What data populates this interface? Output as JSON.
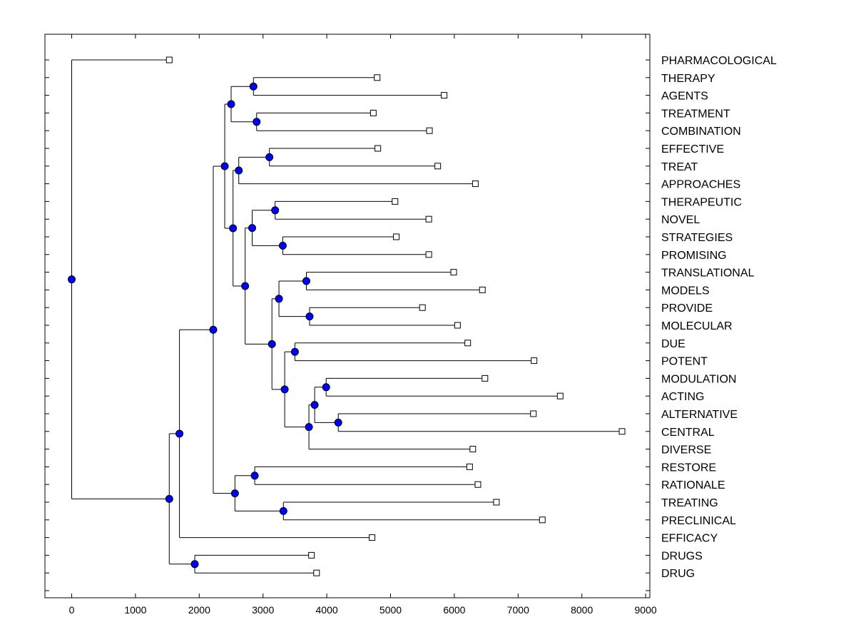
{
  "chart_data": {
    "type": "dendrogram",
    "title": "",
    "xlabel": "",
    "ylabel": "",
    "xlim": [
      -420,
      9060
    ],
    "x_ticks": [
      0,
      1000,
      2000,
      3000,
      4000,
      5000,
      6000,
      7000,
      8000,
      9000
    ],
    "x_tick_labels": [
      "0",
      "1000",
      "2000",
      "3000",
      "4000",
      "5000",
      "6000",
      "7000",
      "8000",
      "9000"
    ],
    "leaves": [
      {
        "label": "PHARMACOLOGICAL",
        "x": 1530
      },
      {
        "label": "THERAPY",
        "x": 4790
      },
      {
        "label": "AGENTS",
        "x": 5840
      },
      {
        "label": "TREATMENT",
        "x": 4730
      },
      {
        "label": "COMBINATION",
        "x": 5610
      },
      {
        "label": "EFFECTIVE",
        "x": 4800
      },
      {
        "label": "TREAT",
        "x": 5740
      },
      {
        "label": "APPROACHES",
        "x": 6330
      },
      {
        "label": "THERAPEUTIC",
        "x": 5070
      },
      {
        "label": "NOVEL",
        "x": 5600
      },
      {
        "label": "STRATEGIES",
        "x": 5090
      },
      {
        "label": "PROMISING",
        "x": 5600
      },
      {
        "label": "TRANSLATIONAL",
        "x": 5990
      },
      {
        "label": "MODELS",
        "x": 6440
      },
      {
        "label": "PROVIDE",
        "x": 5500
      },
      {
        "label": "MOLECULAR",
        "x": 6050
      },
      {
        "label": "DUE",
        "x": 6210
      },
      {
        "label": "POTENT",
        "x": 7250
      },
      {
        "label": "MODULATION",
        "x": 6480
      },
      {
        "label": "ACTING",
        "x": 7660
      },
      {
        "label": "ALTERNATIVE",
        "x": 7240
      },
      {
        "label": "CENTRAL",
        "x": 8630
      },
      {
        "label": "DIVERSE",
        "x": 6290
      },
      {
        "label": "RESTORE",
        "x": 6240
      },
      {
        "label": "RATIONALE",
        "x": 6370
      },
      {
        "label": "TREATING",
        "x": 6660
      },
      {
        "label": "PRECLINICAL",
        "x": 7380
      },
      {
        "label": "EFFICACY",
        "x": 4710
      },
      {
        "label": "DRUGS",
        "x": 3760
      },
      {
        "label": "DRUG",
        "x": 3840
      }
    ],
    "merges": [
      {
        "id": "n1",
        "x": 2850,
        "children": [
          "THERAPY",
          "AGENTS"
        ]
      },
      {
        "id": "n2",
        "x": 2900,
        "children": [
          "TREATMENT",
          "COMBINATION"
        ]
      },
      {
        "id": "n3",
        "x": 2500,
        "children": [
          "n1",
          "n2"
        ]
      },
      {
        "id": "n4",
        "x": 3100,
        "children": [
          "EFFECTIVE",
          "TREAT"
        ]
      },
      {
        "id": "n5",
        "x": 2620,
        "children": [
          "n4",
          "APPROACHES"
        ]
      },
      {
        "id": "n6",
        "x": 3190,
        "children": [
          "THERAPEUTIC",
          "NOVEL"
        ]
      },
      {
        "id": "n7",
        "x": 3310,
        "children": [
          "STRATEGIES",
          "PROMISING"
        ]
      },
      {
        "id": "n8",
        "x": 2830,
        "children": [
          "n6",
          "n7"
        ]
      },
      {
        "id": "n9",
        "x": 3680,
        "children": [
          "TRANSLATIONAL",
          "MODELS"
        ]
      },
      {
        "id": "n10",
        "x": 3730,
        "children": [
          "PROVIDE",
          "MOLECULAR"
        ]
      },
      {
        "id": "n11",
        "x": 3250,
        "children": [
          "n9",
          "n10"
        ]
      },
      {
        "id": "n12",
        "x": 3500,
        "children": [
          "DUE",
          "POTENT"
        ]
      },
      {
        "id": "n13",
        "x": 3990,
        "children": [
          "MODULATION",
          "ACTING"
        ]
      },
      {
        "id": "n14",
        "x": 4180,
        "children": [
          "ALTERNATIVE",
          "CENTRAL"
        ]
      },
      {
        "id": "n15",
        "x": 3810,
        "children": [
          "n13",
          "n14"
        ]
      },
      {
        "id": "n16",
        "x": 3720,
        "children": [
          "n15",
          "DIVERSE"
        ]
      },
      {
        "id": "n17",
        "x": 3340,
        "children": [
          "n12",
          "n16"
        ]
      },
      {
        "id": "n18",
        "x": 3140,
        "children": [
          "n11",
          "n17"
        ]
      },
      {
        "id": "n19",
        "x": 2720,
        "children": [
          "n8",
          "n18"
        ]
      },
      {
        "id": "n20",
        "x": 2530,
        "children": [
          "n5",
          "n19"
        ]
      },
      {
        "id": "n21",
        "x": 2400,
        "children": [
          "n3",
          "n20"
        ]
      },
      {
        "id": "n22",
        "x": 2870,
        "children": [
          "RESTORE",
          "RATIONALE"
        ]
      },
      {
        "id": "n23",
        "x": 3320,
        "children": [
          "TREATING",
          "PRECLINICAL"
        ]
      },
      {
        "id": "n24",
        "x": 2560,
        "children": [
          "n22",
          "n23"
        ]
      },
      {
        "id": "n25",
        "x": 2220,
        "children": [
          "n21",
          "n24"
        ]
      },
      {
        "id": "n26",
        "x": 1690,
        "children": [
          "n25",
          "EFFICACY"
        ]
      },
      {
        "id": "n27",
        "x": 1930,
        "children": [
          "DRUGS",
          "DRUG"
        ]
      },
      {
        "id": "n28",
        "x": 1530,
        "children": [
          "n26",
          "n27"
        ]
      },
      {
        "id": "root",
        "x": 0,
        "children": [
          "PHARMACOLOGICAL",
          "n28"
        ]
      }
    ],
    "colors": {
      "node_fill": "#0000ff",
      "line": "#000000",
      "leaf_marker_fill": "#ffffff"
    }
  }
}
